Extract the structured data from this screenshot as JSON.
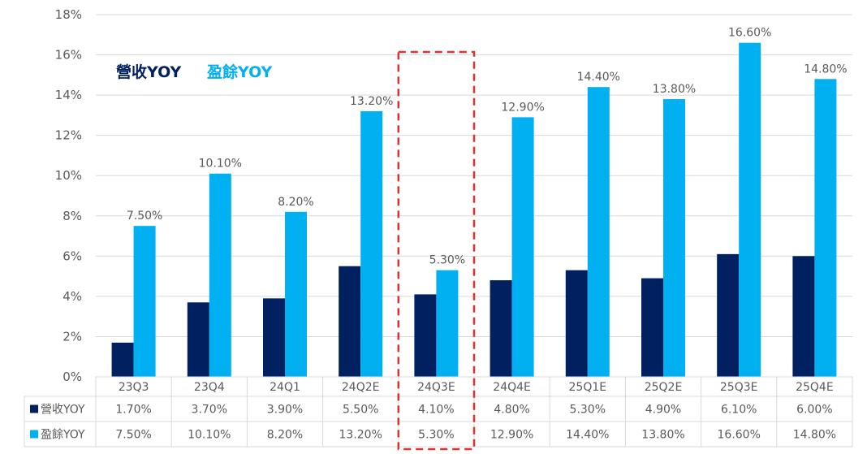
{
  "chart_data": {
    "type": "bar",
    "categories": [
      "23Q3",
      "23Q4",
      "24Q1",
      "24Q2E",
      "24Q3E",
      "24Q4E",
      "25Q1E",
      "25Q2E",
      "25Q3E",
      "25Q4E"
    ],
    "series": [
      {
        "name": "營收YOY",
        "color": "#002060",
        "values": [
          1.7,
          3.7,
          3.9,
          5.5,
          4.1,
          4.8,
          5.3,
          4.9,
          6.1,
          6.0
        ],
        "table_labels": [
          "1.70%",
          "3.70%",
          "3.90%",
          "5.50%",
          "4.10%",
          "4.80%",
          "5.30%",
          "4.90%",
          "6.10%",
          "6.00%"
        ]
      },
      {
        "name": "盈餘YOY",
        "color": "#00B0F0",
        "values": [
          7.5,
          10.1,
          8.2,
          13.2,
          5.3,
          12.9,
          14.4,
          13.8,
          16.6,
          14.8
        ],
        "table_labels": [
          "7.50%",
          "10.10%",
          "8.20%",
          "13.20%",
          "5.30%",
          "12.90%",
          "14.40%",
          "13.80%",
          "16.60%",
          "14.80%"
        ],
        "data_labels": [
          "7.50%",
          "10.10%",
          "8.20%",
          "13.20%",
          "5.30%",
          "12.90%",
          "14.40%",
          "13.80%",
          "16.60%",
          "14.80%"
        ]
      }
    ],
    "ylim": [
      0,
      18
    ],
    "y_ticks": [
      0,
      2,
      4,
      6,
      8,
      10,
      12,
      14,
      16,
      18
    ],
    "y_tick_labels": [
      "0%",
      "2%",
      "4%",
      "6%",
      "8%",
      "10%",
      "12%",
      "14%",
      "16%",
      "18%"
    ],
    "grid": true,
    "legend_position": "top-left",
    "data_table": true,
    "highlighted_category": "24Q3E",
    "highlight_color": "#E03030"
  }
}
